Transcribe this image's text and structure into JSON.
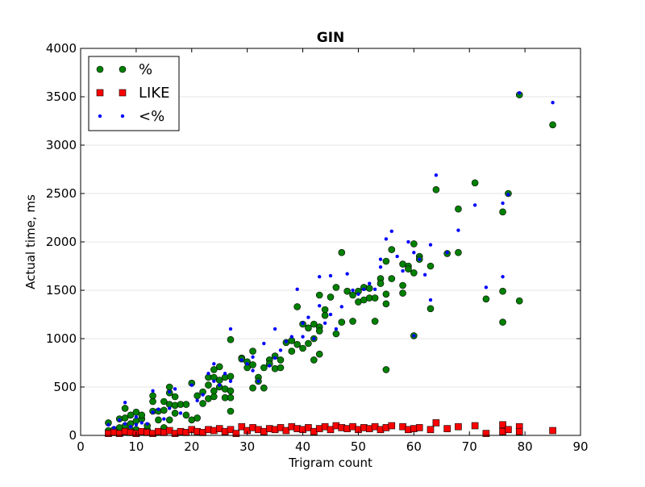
{
  "chart_data": {
    "type": "scatter",
    "title": "GIN",
    "xlabel": "Trigram count",
    "ylabel": "Actual time, ms",
    "xlim": [
      0,
      90
    ],
    "ylim": [
      0,
      4000
    ],
    "xticks": [
      0,
      10,
      20,
      30,
      40,
      50,
      60,
      70,
      80,
      90
    ],
    "yticks": [
      0,
      500,
      1000,
      1500,
      2000,
      2500,
      3000,
      3500,
      4000
    ],
    "grid": "horizontal, light gray",
    "legend_position": "top-left",
    "series": [
      {
        "name": "%",
        "marker": "circle",
        "color": "#008000",
        "points": [
          [
            5,
            130
          ],
          [
            5,
            50
          ],
          [
            6,
            60
          ],
          [
            7,
            80
          ],
          [
            7,
            170
          ],
          [
            8,
            100
          ],
          [
            8,
            280
          ],
          [
            8,
            180
          ],
          [
            8,
            40
          ],
          [
            9,
            60
          ],
          [
            9,
            210
          ],
          [
            9,
            120
          ],
          [
            10,
            240
          ],
          [
            10,
            150
          ],
          [
            10,
            60
          ],
          [
            11,
            170
          ],
          [
            11,
            210
          ],
          [
            12,
            60
          ],
          [
            12,
            100
          ],
          [
            13,
            350
          ],
          [
            13,
            250
          ],
          [
            13,
            410
          ],
          [
            14,
            250
          ],
          [
            14,
            160
          ],
          [
            15,
            260
          ],
          [
            15,
            350
          ],
          [
            15,
            80
          ],
          [
            16,
            500
          ],
          [
            16,
            440
          ],
          [
            16,
            320
          ],
          [
            16,
            160
          ],
          [
            17,
            400
          ],
          [
            17,
            310
          ],
          [
            17,
            230
          ],
          [
            18,
            320
          ],
          [
            19,
            210
          ],
          [
            19,
            320
          ],
          [
            20,
            540
          ],
          [
            20,
            160
          ],
          [
            21,
            410
          ],
          [
            21,
            180
          ],
          [
            22,
            450
          ],
          [
            22,
            330
          ],
          [
            23,
            600
          ],
          [
            23,
            520
          ],
          [
            23,
            380
          ],
          [
            24,
            680
          ],
          [
            24,
            600
          ],
          [
            24,
            460
          ],
          [
            24,
            400
          ],
          [
            25,
            710
          ],
          [
            25,
            570
          ],
          [
            25,
            500
          ],
          [
            26,
            600
          ],
          [
            26,
            480
          ],
          [
            26,
            390
          ],
          [
            27,
            990
          ],
          [
            27,
            610
          ],
          [
            27,
            460
          ],
          [
            27,
            390
          ],
          [
            27,
            250
          ],
          [
            29,
            800
          ],
          [
            29,
            790
          ],
          [
            30,
            700
          ],
          [
            30,
            760
          ],
          [
            31,
            870
          ],
          [
            31,
            730
          ],
          [
            31,
            490
          ],
          [
            32,
            600
          ],
          [
            32,
            560
          ],
          [
            33,
            490
          ],
          [
            33,
            700
          ],
          [
            34,
            780
          ],
          [
            34,
            740
          ],
          [
            35,
            820
          ],
          [
            35,
            690
          ],
          [
            36,
            780
          ],
          [
            36,
            700
          ],
          [
            37,
            960
          ],
          [
            38,
            980
          ],
          [
            38,
            870
          ],
          [
            39,
            1330
          ],
          [
            39,
            940
          ],
          [
            40,
            1150
          ],
          [
            40,
            900
          ],
          [
            41,
            1110
          ],
          [
            41,
            950
          ],
          [
            42,
            1150
          ],
          [
            42,
            780
          ],
          [
            42,
            1000
          ],
          [
            43,
            1450
          ],
          [
            43,
            1120
          ],
          [
            43,
            1080
          ],
          [
            43,
            840
          ],
          [
            44,
            1300
          ],
          [
            44,
            1240
          ],
          [
            45,
            1430
          ],
          [
            46,
            1530
          ],
          [
            46,
            1050
          ],
          [
            47,
            1890
          ],
          [
            47,
            1170
          ],
          [
            48,
            1490
          ],
          [
            49,
            1180
          ],
          [
            49,
            1450
          ],
          [
            50,
            1380
          ],
          [
            50,
            1490
          ],
          [
            51,
            1400
          ],
          [
            51,
            1530
          ],
          [
            52,
            1420
          ],
          [
            52,
            1520
          ],
          [
            53,
            1180
          ],
          [
            53,
            1420
          ],
          [
            54,
            1620
          ],
          [
            54,
            1570
          ],
          [
            55,
            1800
          ],
          [
            55,
            680
          ],
          [
            55,
            1360
          ],
          [
            55,
            1460
          ],
          [
            56,
            1620
          ],
          [
            56,
            1920
          ],
          [
            58,
            1770
          ],
          [
            58,
            1550
          ],
          [
            58,
            1470
          ],
          [
            59,
            1750
          ],
          [
            59,
            1720
          ],
          [
            60,
            1980
          ],
          [
            60,
            1680
          ],
          [
            60,
            1030
          ],
          [
            61,
            1850
          ],
          [
            61,
            1820
          ],
          [
            63,
            1750
          ],
          [
            63,
            1310
          ],
          [
            64,
            2540
          ],
          [
            66,
            1880
          ],
          [
            68,
            2340
          ],
          [
            68,
            1890
          ],
          [
            71,
            2610
          ],
          [
            73,
            1410
          ],
          [
            76,
            2310
          ],
          [
            76,
            1490
          ],
          [
            76,
            1170
          ],
          [
            77,
            2500
          ],
          [
            79,
            3520
          ],
          [
            79,
            1390
          ],
          [
            85,
            3210
          ]
        ]
      },
      {
        "name": "LIKE",
        "marker": "square",
        "color": "#ff0000",
        "points": [
          [
            5,
            20
          ],
          [
            6,
            30
          ],
          [
            7,
            20
          ],
          [
            8,
            40
          ],
          [
            9,
            30
          ],
          [
            10,
            20
          ],
          [
            11,
            40
          ],
          [
            12,
            30
          ],
          [
            13,
            20
          ],
          [
            14,
            40
          ],
          [
            15,
            30
          ],
          [
            16,
            50
          ],
          [
            17,
            20
          ],
          [
            18,
            40
          ],
          [
            19,
            30
          ],
          [
            20,
            60
          ],
          [
            21,
            40
          ],
          [
            22,
            30
          ],
          [
            23,
            60
          ],
          [
            24,
            50
          ],
          [
            25,
            70
          ],
          [
            26,
            40
          ],
          [
            27,
            60
          ],
          [
            28,
            20
          ],
          [
            29,
            90
          ],
          [
            30,
            50
          ],
          [
            31,
            80
          ],
          [
            32,
            60
          ],
          [
            33,
            40
          ],
          [
            34,
            70
          ],
          [
            35,
            60
          ],
          [
            36,
            80
          ],
          [
            37,
            50
          ],
          [
            38,
            90
          ],
          [
            39,
            70
          ],
          [
            40,
            60
          ],
          [
            41,
            80
          ],
          [
            42,
            40
          ],
          [
            43,
            70
          ],
          [
            44,
            90
          ],
          [
            45,
            60
          ],
          [
            46,
            100
          ],
          [
            47,
            80
          ],
          [
            48,
            70
          ],
          [
            49,
            90
          ],
          [
            50,
            60
          ],
          [
            51,
            80
          ],
          [
            52,
            70
          ],
          [
            53,
            90
          ],
          [
            54,
            60
          ],
          [
            55,
            80
          ],
          [
            56,
            100
          ],
          [
            58,
            90
          ],
          [
            59,
            60
          ],
          [
            60,
            70
          ],
          [
            61,
            80
          ],
          [
            63,
            60
          ],
          [
            64,
            130
          ],
          [
            66,
            70
          ],
          [
            68,
            90
          ],
          [
            71,
            100
          ],
          [
            73,
            20
          ],
          [
            76,
            110
          ],
          [
            76,
            40
          ],
          [
            77,
            60
          ],
          [
            79,
            90
          ],
          [
            79,
            40
          ],
          [
            85,
            50
          ]
        ]
      },
      {
        "name": "<%",
        "marker": "dot",
        "color": "#0000ff",
        "points": [
          [
            5,
            110
          ],
          [
            6,
            80
          ],
          [
            7,
            160
          ],
          [
            8,
            340
          ],
          [
            8,
            120
          ],
          [
            9,
            90
          ],
          [
            10,
            190
          ],
          [
            10,
            110
          ],
          [
            11,
            130
          ],
          [
            12,
            120
          ],
          [
            13,
            460
          ],
          [
            13,
            240
          ],
          [
            14,
            270
          ],
          [
            15,
            170
          ],
          [
            16,
            450
          ],
          [
            16,
            280
          ],
          [
            17,
            480
          ],
          [
            18,
            230
          ],
          [
            20,
            520
          ],
          [
            21,
            360
          ],
          [
            22,
            420
          ],
          [
            23,
            640
          ],
          [
            24,
            740
          ],
          [
            24,
            560
          ],
          [
            25,
            520
          ],
          [
            26,
            640
          ],
          [
            27,
            1100
          ],
          [
            27,
            560
          ],
          [
            29,
            780
          ],
          [
            30,
            740
          ],
          [
            31,
            810
          ],
          [
            31,
            670
          ],
          [
            32,
            560
          ],
          [
            33,
            950
          ],
          [
            34,
            720
          ],
          [
            35,
            1100
          ],
          [
            35,
            800
          ],
          [
            36,
            880
          ],
          [
            37,
            970
          ],
          [
            38,
            1020
          ],
          [
            39,
            1510
          ],
          [
            40,
            1160
          ],
          [
            40,
            1020
          ],
          [
            41,
            1220
          ],
          [
            42,
            1000
          ],
          [
            43,
            1640
          ],
          [
            43,
            1340
          ],
          [
            44,
            1160
          ],
          [
            45,
            1650
          ],
          [
            45,
            1250
          ],
          [
            46,
            1100
          ],
          [
            47,
            1330
          ],
          [
            48,
            1670
          ],
          [
            49,
            1500
          ],
          [
            50,
            1460
          ],
          [
            51,
            1510
          ],
          [
            52,
            1570
          ],
          [
            53,
            1510
          ],
          [
            54,
            1820
          ],
          [
            54,
            1740
          ],
          [
            55,
            2030
          ],
          [
            56,
            2110
          ],
          [
            57,
            1850
          ],
          [
            58,
            1700
          ],
          [
            59,
            2000
          ],
          [
            60,
            1890
          ],
          [
            60,
            1030
          ],
          [
            61,
            1820
          ],
          [
            62,
            1660
          ],
          [
            63,
            1970
          ],
          [
            63,
            1400
          ],
          [
            64,
            2690
          ],
          [
            66,
            1890
          ],
          [
            68,
            2120
          ],
          [
            71,
            2380
          ],
          [
            73,
            1530
          ],
          [
            76,
            2400
          ],
          [
            76,
            1640
          ],
          [
            77,
            2490
          ],
          [
            79,
            3540
          ],
          [
            85,
            3440
          ]
        ]
      }
    ]
  }
}
